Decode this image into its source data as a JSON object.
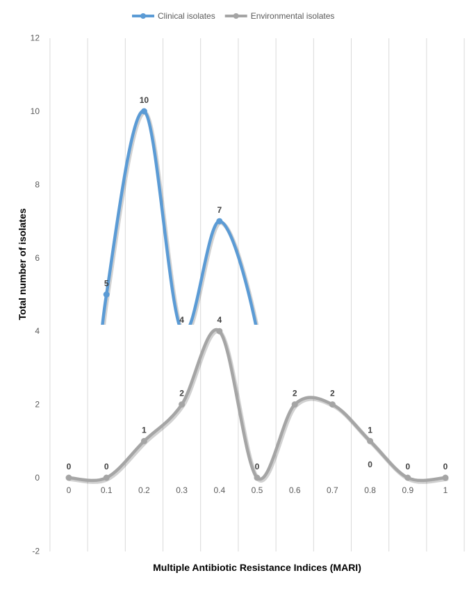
{
  "chart_data": {
    "type": "line",
    "smooth": true,
    "x": [
      "0",
      "0.1",
      "0.2",
      "0.3",
      "0.4",
      "0.5",
      "0.6",
      "0.7",
      "0.8",
      "0.9",
      "1"
    ],
    "series": [
      {
        "name": "Clinical isolates",
        "color": "#5B9BD5",
        "values": [
          null,
          5,
          10,
          4,
          7,
          4,
          null,
          null,
          null,
          null,
          null
        ],
        "labels": [
          null,
          "5",
          "10",
          "4",
          "7",
          null,
          null,
          null,
          null,
          null,
          null
        ]
      },
      {
        "name": "Environmental isolates",
        "color": "#A5A5A5",
        "values": [
          0,
          0,
          1,
          2,
          4,
          0,
          2,
          2,
          1,
          0,
          0
        ],
        "labels": [
          "0",
          "0",
          "1",
          "2",
          "4",
          "0",
          "2",
          "2",
          "1",
          "0",
          "0"
        ]
      }
    ],
    "extra_labels": [
      {
        "x": "0.8",
        "text": "0"
      }
    ],
    "ylabel": "Total number of isolates",
    "xlabel": "Multiple Antibiotic Resistance Indices (MARI)",
    "ylim": [
      -2,
      12
    ],
    "yticks": [
      "-2",
      "0",
      "2",
      "4",
      "6",
      "8",
      "10",
      "12"
    ],
    "grid": "vertical",
    "legend_position": "top"
  }
}
